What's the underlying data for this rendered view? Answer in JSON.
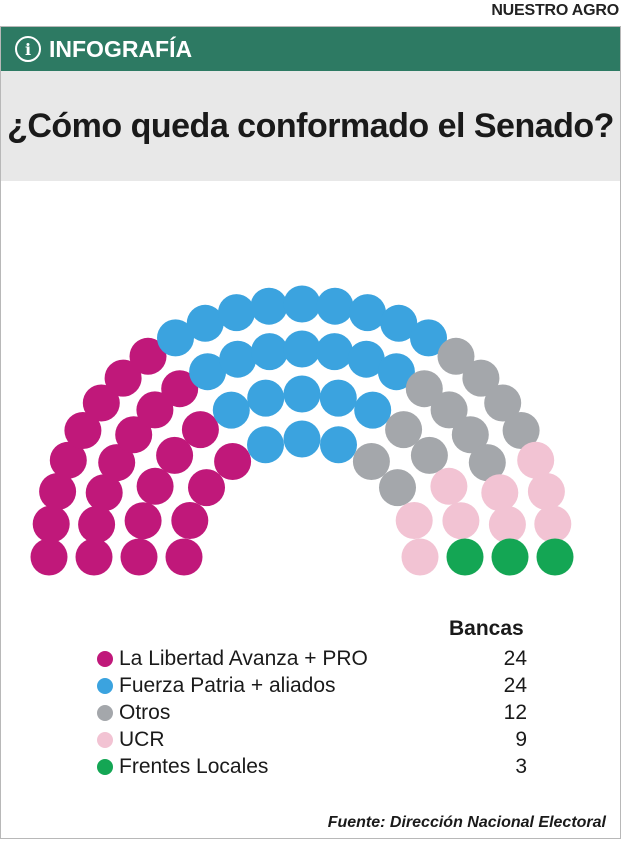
{
  "brand": "NUESTRO AGRO",
  "banner": {
    "label": "INFOGRAFÍA",
    "icon": "info-icon"
  },
  "title": "¿Cómo queda conformado el Senado?",
  "source": "Fuente: Dirección Nacional Electoral",
  "chart_data": {
    "type": "parliament",
    "title": "¿Cómo queda conformado el Senado?",
    "total_seats": 72,
    "value_header": "Bancas",
    "series": [
      {
        "name": "La Libertad Avanza + PRO",
        "value": 24,
        "display": "24",
        "color": "#c0187a"
      },
      {
        "name": "Fuerza Patria + aliados",
        "value": 24,
        "display": "24",
        "color": "#3ba3df"
      },
      {
        "name": "Otros",
        "value": 12,
        "display": "12",
        "color": "#a4a7ab"
      },
      {
        "name": "UCR",
        "value": 9,
        "display": "9",
        "color": "#f2c3d3"
      },
      {
        "name": "Frentes Locales",
        "value": 3,
        "display": "3",
        "color": "#14a654"
      }
    ]
  }
}
